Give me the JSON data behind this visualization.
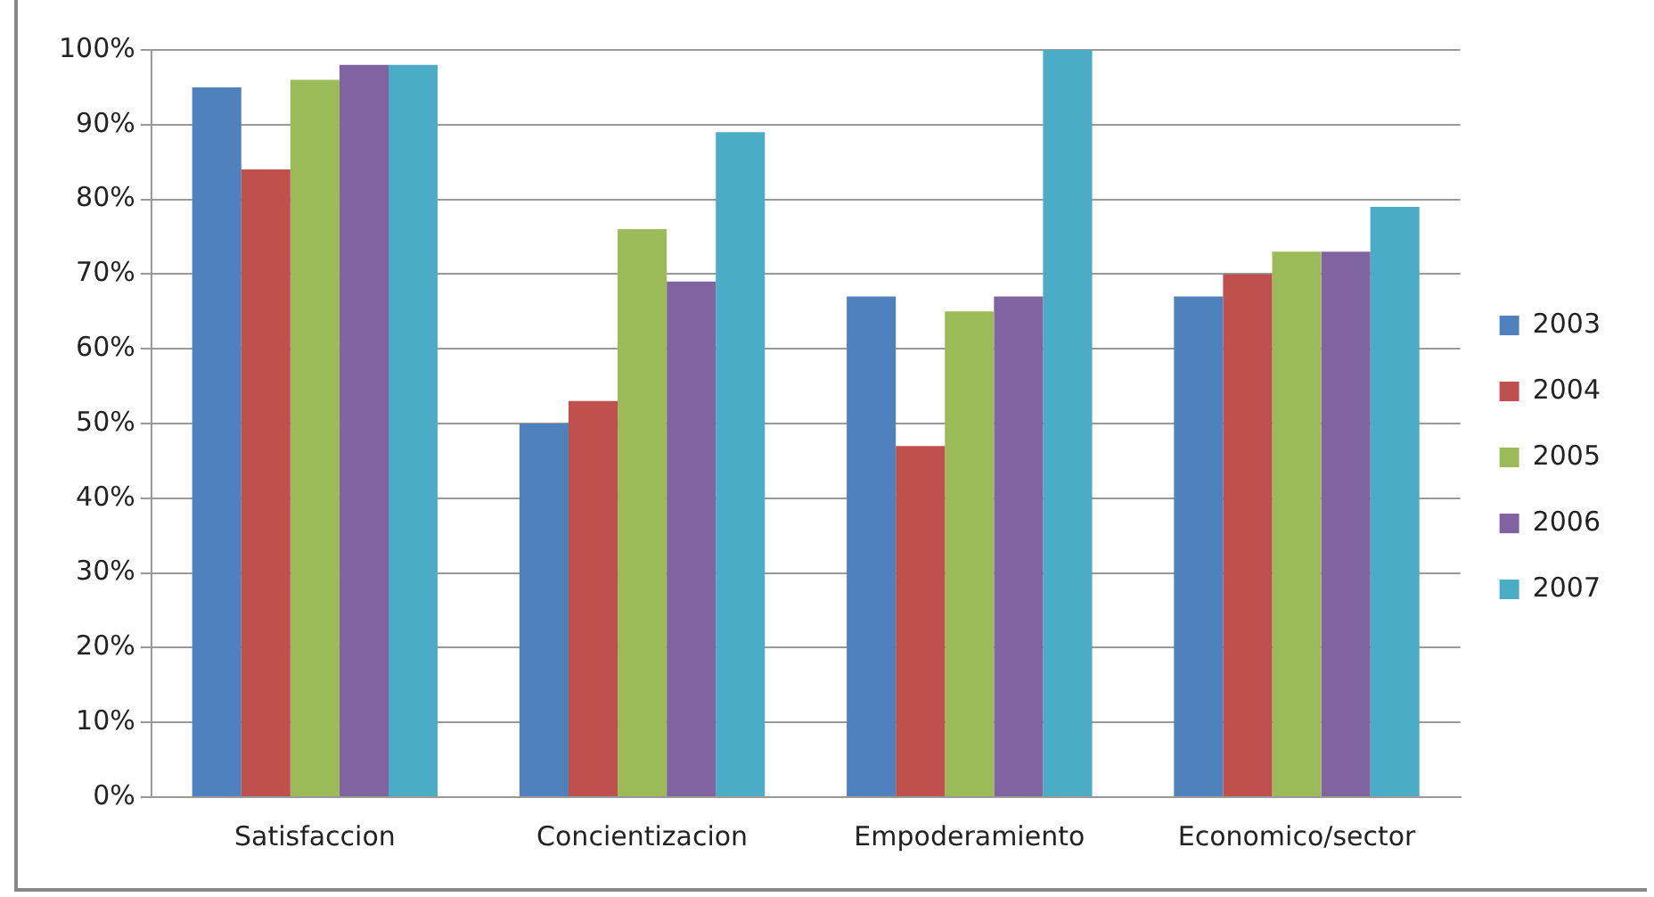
{
  "chart_data": {
    "type": "bar",
    "categories": [
      "Satisfaccion",
      "Concientizacion",
      "Empoderamiento",
      "Economico/sector"
    ],
    "series": [
      {
        "name": "2003",
        "color": "#4f81bd",
        "values": [
          95,
          50,
          67,
          67
        ]
      },
      {
        "name": "2004",
        "color": "#c0504d",
        "values": [
          84,
          53,
          47,
          70
        ]
      },
      {
        "name": "2005",
        "color": "#9bbb59",
        "values": [
          96,
          76,
          65,
          73
        ]
      },
      {
        "name": "2006",
        "color": "#8064a2",
        "values": [
          98,
          69,
          67,
          73
        ]
      },
      {
        "name": "2007",
        "color": "#4bacc6",
        "values": [
          98,
          89,
          100,
          79
        ]
      }
    ],
    "ylim": [
      0,
      100
    ],
    "yticks": [
      {
        "value": 0,
        "label": "0%"
      },
      {
        "value": 10,
        "label": "10%"
      },
      {
        "value": 20,
        "label": "20%"
      },
      {
        "value": 30,
        "label": "30%"
      },
      {
        "value": 40,
        "label": "40%"
      },
      {
        "value": 50,
        "label": "50%"
      },
      {
        "value": 60,
        "label": "60%"
      },
      {
        "value": 70,
        "label": "70%"
      },
      {
        "value": 80,
        "label": "80%"
      },
      {
        "value": 90,
        "label": "90%"
      },
      {
        "value": 100,
        "label": "100%"
      }
    ],
    "grid": "y",
    "legend": "right"
  }
}
